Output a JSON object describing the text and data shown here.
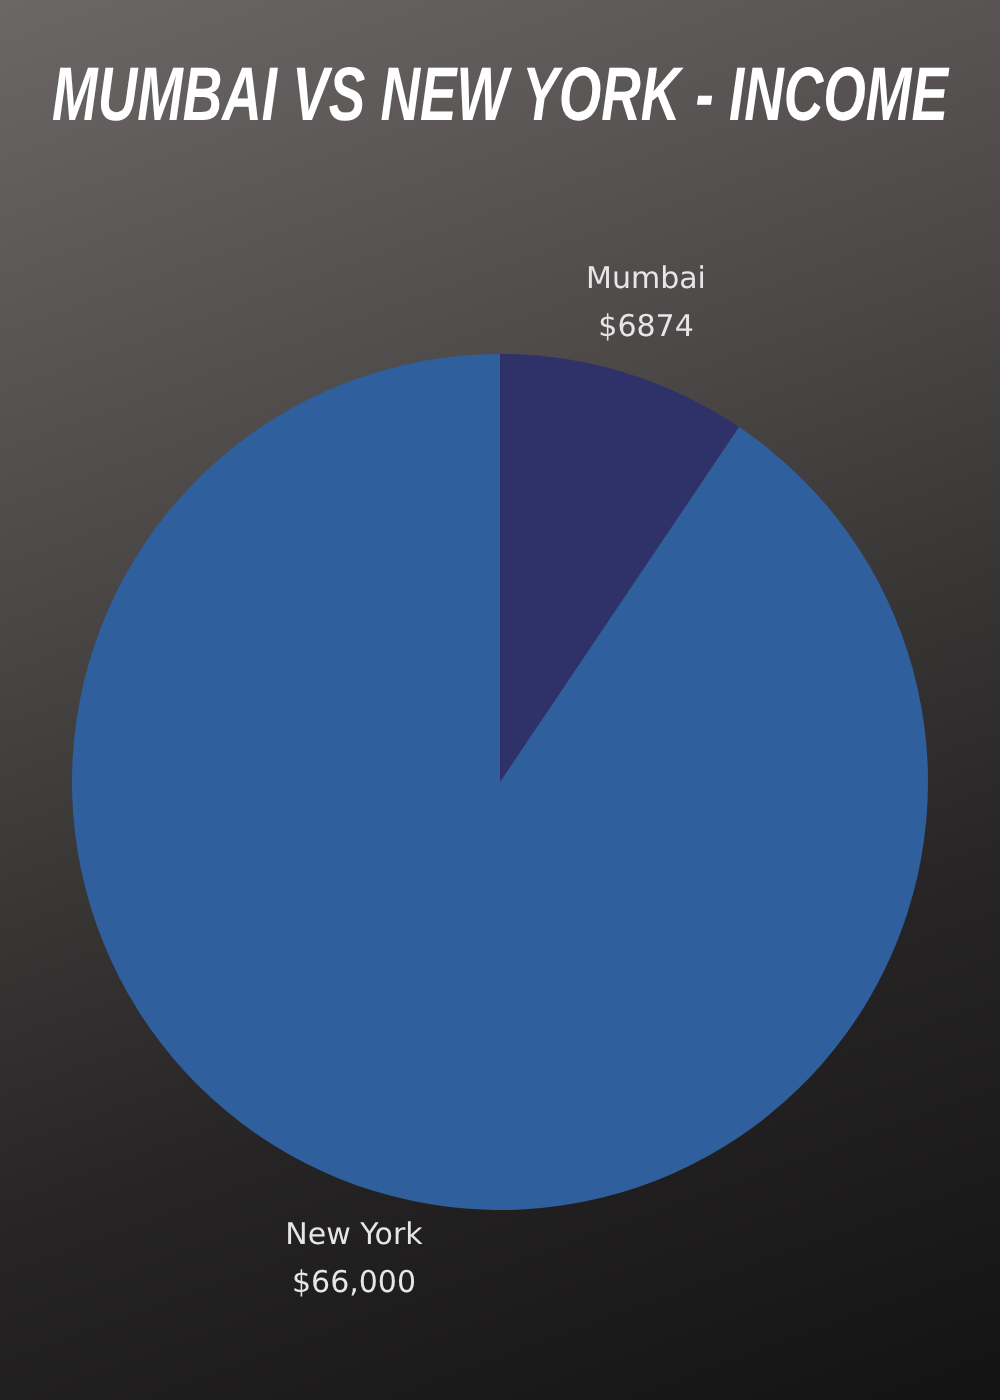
{
  "chart_data": {
    "type": "pie",
    "title": "MUMBAI VS NEW YORK - INCOME",
    "categories": [
      "Mumbai",
      "New York"
    ],
    "values": [
      6874,
      66000
    ],
    "value_labels": [
      "$6874",
      "$66,000"
    ],
    "colors": [
      "#2e3268",
      "#2f5f9c"
    ],
    "legend": false
  }
}
